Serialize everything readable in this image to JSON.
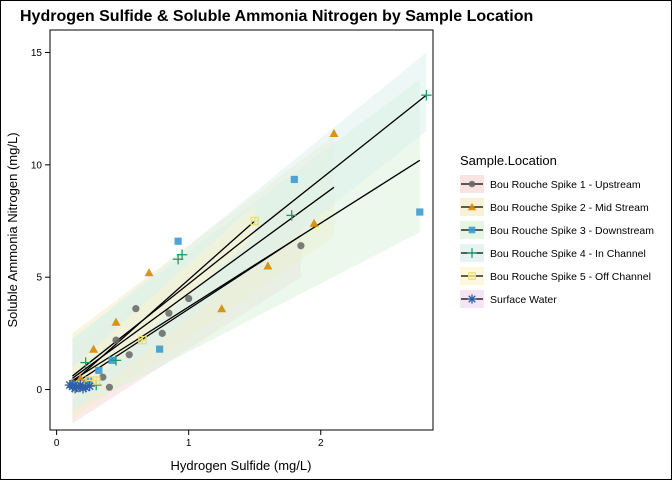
{
  "chart_data": {
    "type": "scatter",
    "title": "Hydrogen Sulfide & Soluble Ammonia Nitrogen by Sample Location",
    "xlabel": "Hydrogen Sulfide (mg/L)",
    "ylabel": "Soluble Ammonia Nitrogen (mg/L)",
    "xlim": [
      -0.05,
      2.85
    ],
    "ylim": [
      -1.8,
      16.0
    ],
    "x_ticks": [
      0,
      1,
      2
    ],
    "y_ticks": [
      0,
      5,
      10,
      15
    ],
    "grid": false,
    "legend_title": "Sample.Location",
    "legend_position": "right",
    "series": [
      {
        "name": "Bou Rouche Spike 1 - Upstream",
        "color": "#666666",
        "shape": "circle",
        "points": [
          [
            0.12,
            0.3
          ],
          [
            0.2,
            0.15
          ],
          [
            0.22,
            0.3
          ],
          [
            0.35,
            0.55
          ],
          [
            0.4,
            0.1
          ],
          [
            0.45,
            2.2
          ],
          [
            0.55,
            1.55
          ],
          [
            0.6,
            3.6
          ],
          [
            0.8,
            2.5
          ],
          [
            0.85,
            3.4
          ],
          [
            1.0,
            4.05
          ],
          [
            1.85,
            6.4
          ]
        ],
        "fit": [
          [
            0.12,
            0.2
          ],
          [
            1.85,
            6.85
          ]
        ],
        "band_upper": [
          [
            0.12,
            1.9
          ],
          [
            1.85,
            8.7
          ]
        ],
        "band_lower": [
          [
            0.12,
            -1.5
          ],
          [
            1.85,
            5.0
          ]
        ],
        "band_color": "#f7d9d9"
      },
      {
        "name": "Bou Rouche Spike 2 - Mid Stream",
        "color": "#d58a00",
        "shape": "triangle",
        "points": [
          [
            0.18,
            0.5
          ],
          [
            0.28,
            1.8
          ],
          [
            0.45,
            3.0
          ],
          [
            0.7,
            5.2
          ],
          [
            1.25,
            3.6
          ],
          [
            1.6,
            5.5
          ],
          [
            1.95,
            7.4
          ],
          [
            2.1,
            11.4
          ]
        ],
        "fit": [
          [
            0.12,
            0.5
          ],
          [
            2.1,
            9.0
          ]
        ],
        "band_upper": [
          [
            0.12,
            2.5
          ],
          [
            2.1,
            11.3
          ]
        ],
        "band_lower": [
          [
            0.12,
            -1.3
          ],
          [
            2.1,
            6.8
          ]
        ],
        "band_color": "#f5ecc8"
      },
      {
        "name": "Bou Rouche Spike 3 - Downstream",
        "color": "#3c9bd2",
        "shape": "square",
        "points": [
          [
            0.15,
            0.2
          ],
          [
            0.25,
            0.4
          ],
          [
            0.32,
            0.85
          ],
          [
            0.42,
            1.3
          ],
          [
            0.78,
            1.8
          ],
          [
            0.92,
            6.6
          ],
          [
            1.8,
            9.35
          ],
          [
            2.75,
            7.9
          ]
        ],
        "fit": [
          [
            0.12,
            0.4
          ],
          [
            2.75,
            10.2
          ]
        ],
        "band_upper": [
          [
            0.12,
            2.3
          ],
          [
            2.75,
            13.8
          ]
        ],
        "band_lower": [
          [
            0.12,
            -1.0
          ],
          [
            2.75,
            7.0
          ]
        ],
        "band_color": "#ddf3dc"
      },
      {
        "name": "Bou Rouche Spike 4 - In Channel",
        "color": "#1f9a6a",
        "shape": "plus",
        "points": [
          [
            0.12,
            0.1
          ],
          [
            0.22,
            1.2
          ],
          [
            0.3,
            0.2
          ],
          [
            0.45,
            1.3
          ],
          [
            0.92,
            5.8
          ],
          [
            0.95,
            6.0
          ],
          [
            1.78,
            7.75
          ],
          [
            2.8,
            13.1
          ]
        ],
        "fit": [
          [
            0.12,
            0.6
          ],
          [
            2.8,
            13.1
          ]
        ],
        "band_upper": [
          [
            0.12,
            2.2
          ],
          [
            2.8,
            15.0
          ]
        ],
        "band_lower": [
          [
            0.12,
            -0.9
          ],
          [
            2.8,
            11.5
          ]
        ],
        "band_color": "#dcf0ee"
      },
      {
        "name": "Bou Rouche Spike 5 - Off Channel",
        "color": "#e8df7a",
        "shape": "square-cross",
        "points": [
          [
            0.18,
            0.2
          ],
          [
            0.25,
            0.4
          ],
          [
            0.3,
            0.4
          ],
          [
            0.65,
            2.2
          ],
          [
            1.5,
            7.5
          ]
        ],
        "fit": [
          [
            0.12,
            0.3
          ],
          [
            1.5,
            7.5
          ]
        ],
        "band_upper": [
          [
            0.12,
            1.0
          ],
          [
            1.5,
            8.2
          ]
        ],
        "band_lower": [
          [
            0.12,
            -0.4
          ],
          [
            1.5,
            6.8
          ]
        ],
        "band_color": "#fbf4d2"
      },
      {
        "name": "Surface Water",
        "color": "#2f5fa8",
        "shape": "asterisk",
        "points": [
          [
            0.1,
            0.2
          ],
          [
            0.12,
            0.15
          ],
          [
            0.15,
            0.1
          ],
          [
            0.18,
            0.2
          ],
          [
            0.2,
            0.05
          ],
          [
            0.22,
            0.1
          ],
          [
            0.25,
            0.15
          ],
          [
            0.14,
            0.05
          ]
        ],
        "fit": [
          [
            0.1,
            0.1
          ],
          [
            0.25,
            0.15
          ]
        ],
        "band_upper": [
          [
            0.1,
            0.25
          ],
          [
            0.25,
            0.3
          ]
        ],
        "band_lower": [
          [
            0.1,
            -0.05
          ],
          [
            0.25,
            0.0
          ]
        ],
        "band_color": "#f2dbef"
      }
    ]
  }
}
